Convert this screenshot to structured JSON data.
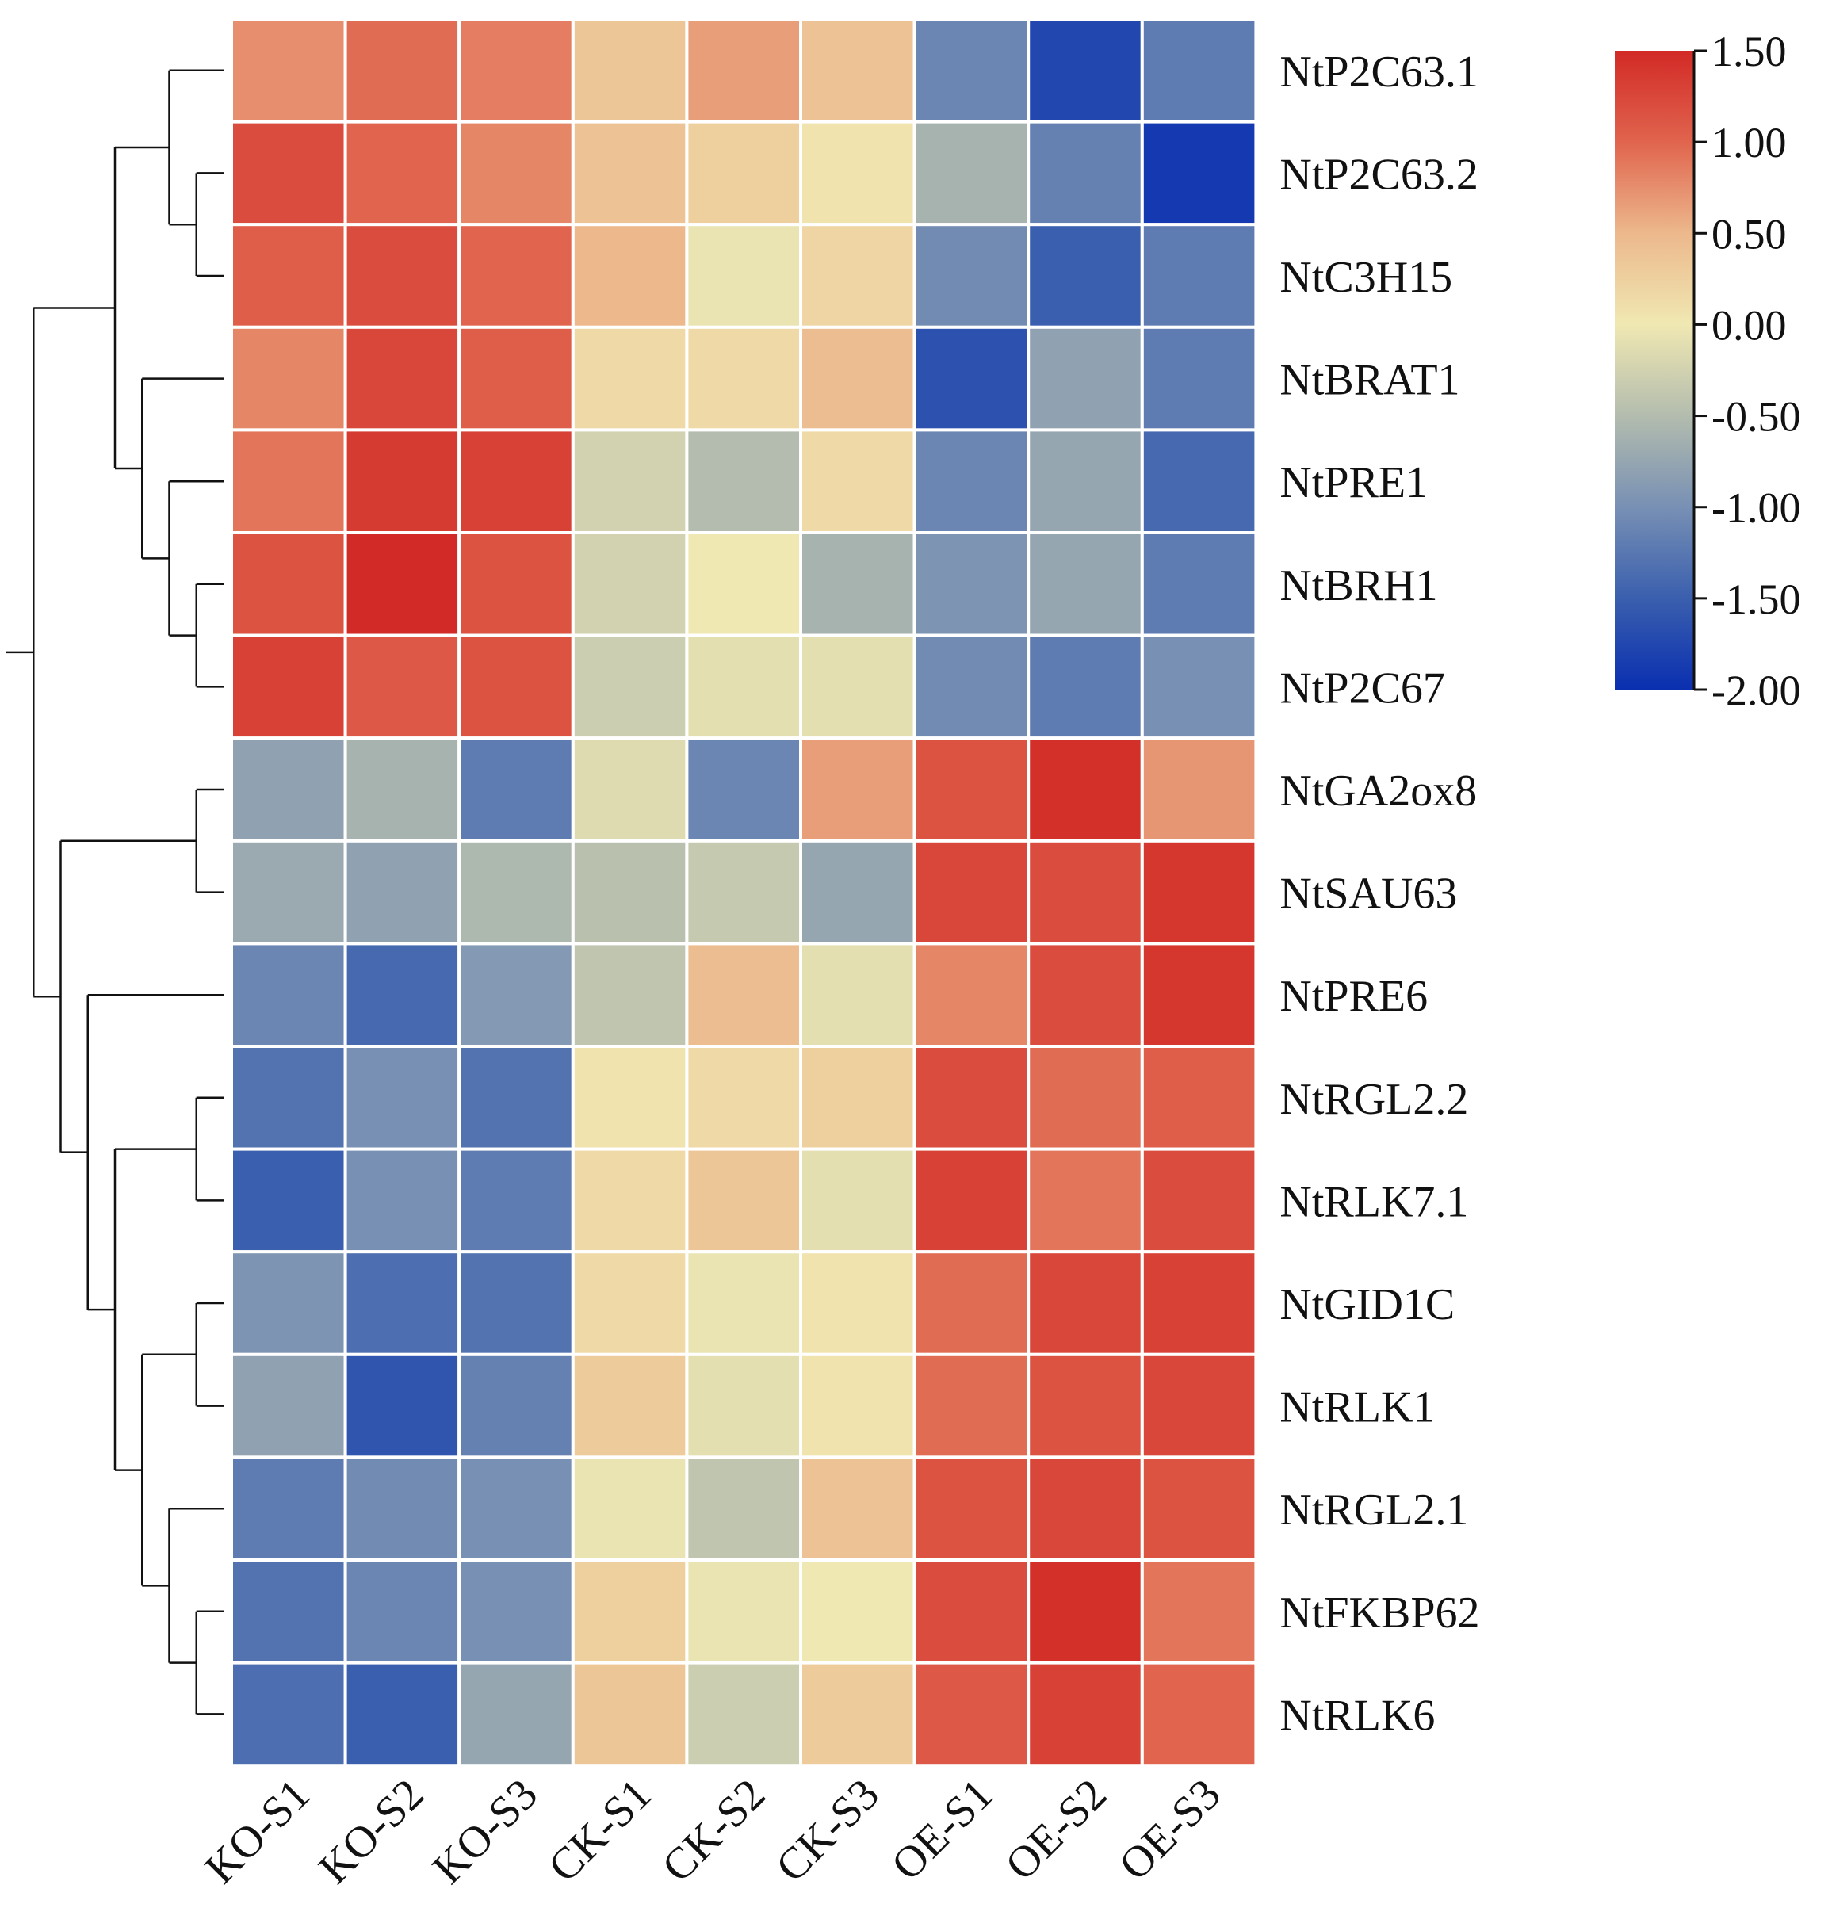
{
  "chart_data": {
    "type": "heatmap",
    "title": "",
    "xlabel": "",
    "ylabel": "",
    "columns": [
      "KO-S1",
      "KO-S2",
      "KO-S3",
      "CK-S1",
      "CK-S2",
      "CK-S3",
      "OE-S1",
      "OE-S2",
      "OE-S3"
    ],
    "rows": [
      "NtP2C63.1",
      "NtP2C63.2",
      "NtC3H15",
      "NtBRAT1",
      "NtPRE1",
      "NtBRH1",
      "NtP2C67",
      "NtGA2ox8",
      "NtSAU63",
      "NtPRE6",
      "NtRGL2.2",
      "NtRLK7.1",
      "NtGID1C",
      "NtRLK1",
      "NtRGL2.1",
      "NtFKBP62",
      "NtRLK6"
    ],
    "values": [
      [
        0.75,
        0.95,
        0.85,
        0.35,
        0.65,
        0.4,
        -1.1,
        -1.75,
        -1.2
      ],
      [
        1.2,
        1.0,
        0.8,
        0.4,
        0.25,
        0.05,
        -0.6,
        -1.15,
        -1.9
      ],
      [
        1.05,
        1.2,
        1.0,
        0.5,
        -0.05,
        0.2,
        -1.05,
        -1.5,
        -1.2
      ],
      [
        0.8,
        1.25,
        1.05,
        0.15,
        0.15,
        0.45,
        -1.65,
        -0.8,
        -1.2
      ],
      [
        0.9,
        1.35,
        1.3,
        -0.25,
        -0.5,
        0.15,
        -1.1,
        -0.75,
        -1.4
      ],
      [
        1.15,
        1.5,
        1.15,
        -0.25,
        0.0,
        -0.6,
        -0.95,
        -0.75,
        -1.2
      ],
      [
        1.3,
        1.1,
        1.15,
        -0.3,
        -0.1,
        -0.1,
        -1.05,
        -1.2,
        -1.0
      ],
      [
        -0.8,
        -0.6,
        -1.2,
        -0.15,
        -1.1,
        0.65,
        1.15,
        1.45,
        0.7
      ],
      [
        -0.7,
        -0.8,
        -0.55,
        -0.45,
        -0.35,
        -0.75,
        1.25,
        1.2,
        1.4
      ],
      [
        -1.1,
        -1.4,
        -0.9,
        -0.4,
        0.45,
        -0.1,
        0.8,
        1.2,
        1.4
      ],
      [
        -1.3,
        -1.0,
        -1.3,
        0.05,
        0.15,
        0.25,
        1.2,
        0.95,
        1.05
      ],
      [
        -1.5,
        -1.0,
        -1.2,
        0.15,
        0.35,
        -0.1,
        1.3,
        0.9,
        1.2
      ],
      [
        -0.95,
        -1.35,
        -1.3,
        0.15,
        -0.05,
        0.05,
        0.95,
        1.25,
        1.3
      ],
      [
        -0.8,
        -1.6,
        -1.15,
        0.3,
        -0.1,
        0.05,
        0.95,
        1.15,
        1.25
      ],
      [
        -1.2,
        -1.05,
        -1.0,
        -0.05,
        -0.4,
        0.4,
        1.15,
        1.25,
        1.15
      ],
      [
        -1.3,
        -1.1,
        -1.0,
        0.25,
        -0.05,
        0.0,
        1.2,
        1.45,
        0.9
      ],
      [
        -1.35,
        -1.5,
        -0.75,
        0.35,
        -0.3,
        0.3,
        1.1,
        1.3,
        1.0
      ]
    ],
    "colorbar": {
      "ticks": [
        "1.50",
        "1.00",
        "0.50",
        "0.00",
        "-0.50",
        "-1.00",
        "-1.50",
        "-2.00"
      ],
      "min": -2.0,
      "max": 1.5,
      "colors": [
        {
          "v": -2.0,
          "c": "#0a2fb0"
        },
        {
          "v": -1.5,
          "c": "#3a5fae"
        },
        {
          "v": -1.0,
          "c": "#7890b4"
        },
        {
          "v": -0.5,
          "c": "#b3bcae"
        },
        {
          "v": 0.0,
          "c": "#f0e8b2"
        },
        {
          "v": 0.5,
          "c": "#ecb88c"
        },
        {
          "v": 1.0,
          "c": "#e0644e"
        },
        {
          "v": 1.5,
          "c": "#d22a26"
        }
      ]
    },
    "dendrogram": {
      "side": "left",
      "tree": [
        [
          [
            [
              0,
              [
                1,
                2
              ]
            ],
            [
              3,
              [
                4,
                [
                  5,
                  6
                ]
              ]
            ]
          ],
          [
            [
              7,
              8
            ],
            [
              9,
              [
                [
                  10,
                  11
                ],
                [
                  [
                    12,
                    13
                  ],
                  [
                    14,
                    [
                      15,
                      16
                    ]
                  ]
                ]
              ]
            ]
          ]
        ]
      ]
    }
  }
}
